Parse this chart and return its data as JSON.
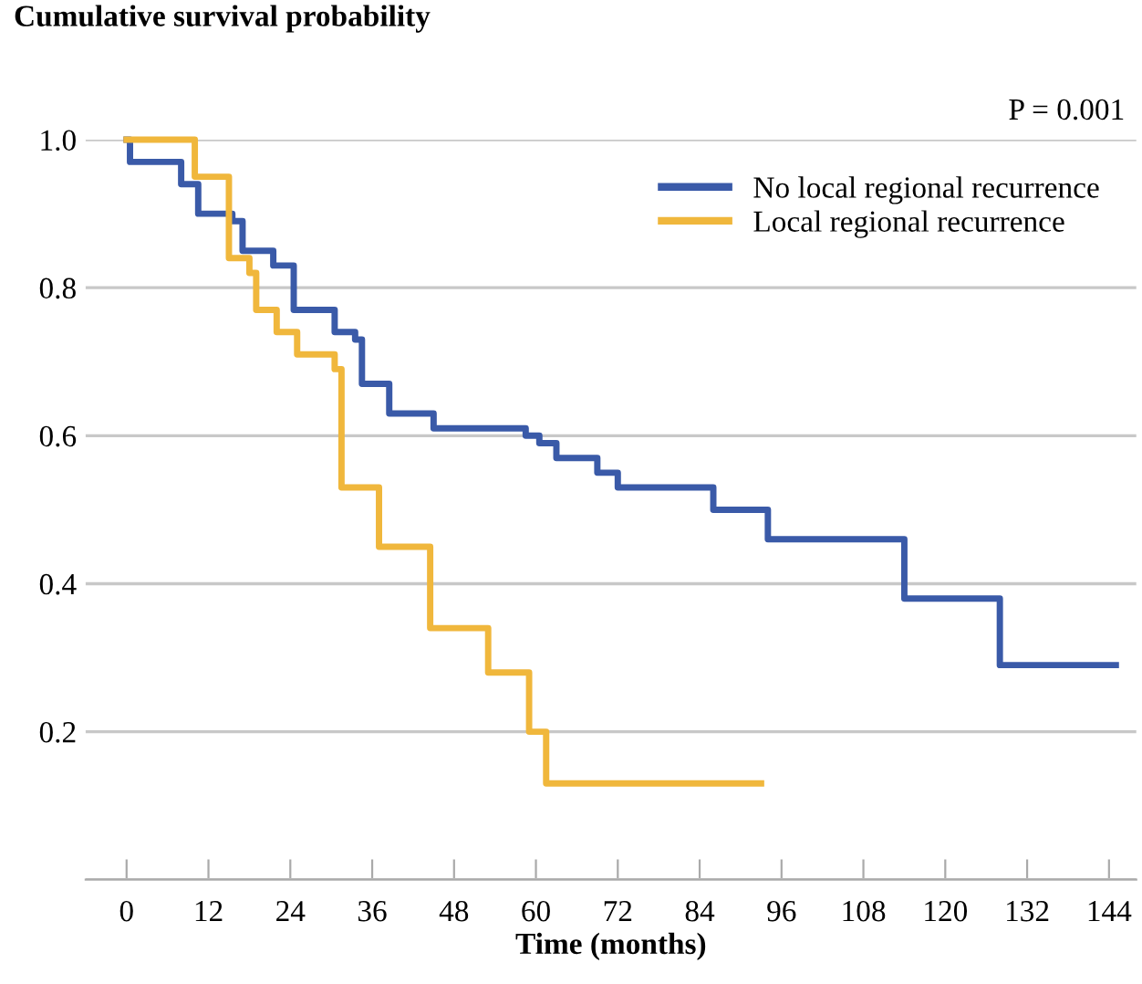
{
  "chart_data": {
    "type": "step",
    "ylabel": "Cumulative survival probability",
    "xlabel": "Time (months)",
    "annotations": [
      "P = 0.001"
    ],
    "series": [
      {
        "name": "No local regional recurrence",
        "color": "#3a5aa8",
        "x": [
          0,
          0.5,
          8,
          10.5,
          15.5,
          17,
          21.5,
          24.5,
          30.5,
          33.5,
          34.5,
          38.5,
          45,
          58.5,
          60.5,
          63,
          69,
          72,
          86,
          94,
          114,
          128,
          145
        ],
        "values": [
          1.0,
          0.97,
          0.94,
          0.9,
          0.89,
          0.85,
          0.83,
          0.77,
          0.74,
          0.73,
          0.67,
          0.63,
          0.61,
          0.6,
          0.59,
          0.57,
          0.55,
          0.53,
          0.5,
          0.46,
          0.38,
          0.29,
          0.29
        ]
      },
      {
        "name": "Local regional recurrence",
        "color": "#f0b73c",
        "x": [
          0,
          10,
          15,
          18,
          19,
          22,
          25,
          30.5,
          31.5,
          37,
          44.5,
          53,
          59,
          61.5,
          93
        ],
        "values": [
          1.0,
          0.95,
          0.84,
          0.82,
          0.77,
          0.74,
          0.71,
          0.69,
          0.53,
          0.45,
          0.34,
          0.28,
          0.2,
          0.13,
          0.13
        ]
      }
    ],
    "xlim": [
      -6,
      148
    ],
    "xticks": [
      0,
      12,
      24,
      36,
      48,
      60,
      72,
      84,
      96,
      108,
      120,
      132,
      144
    ],
    "ylim": [
      0,
      1.0
    ],
    "yticks": [
      {
        "value": 0,
        "label": null
      },
      0.2,
      0.4,
      0.6,
      0.8,
      {
        "value": 1.0,
        "label": "1.0"
      }
    ],
    "grid": "y",
    "legend": "top right",
    "line_style": "solid"
  }
}
